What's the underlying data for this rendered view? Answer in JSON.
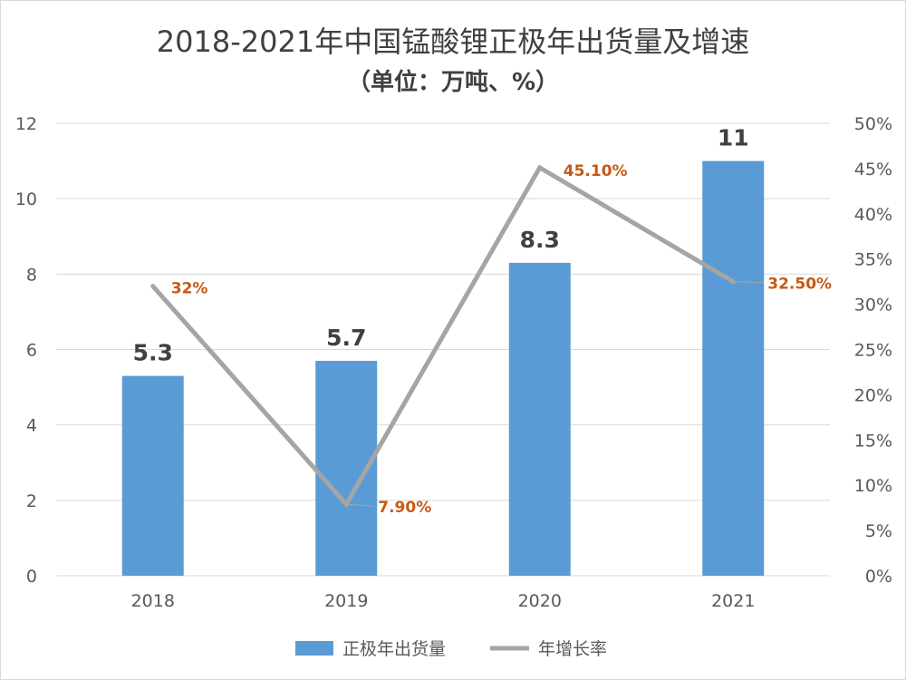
{
  "chart_data": {
    "type": "bar",
    "title": "2018-2021年中国锰酸锂正极年出货量及增速",
    "subtitle": "（单位：万吨、%）",
    "categories": [
      "2018",
      "2019",
      "2020",
      "2021"
    ],
    "series": [
      {
        "name": "正极年出货量",
        "type": "bar",
        "axis": "left",
        "color": "#5b9bd5",
        "values": [
          5.3,
          5.7,
          8.3,
          11
        ],
        "labels": [
          "5.3",
          "5.7",
          "8.3",
          "11"
        ]
      },
      {
        "name": "年增长率",
        "type": "line",
        "axis": "right",
        "color": "#a5a5a5",
        "values": [
          32,
          7.9,
          45.1,
          32.5
        ],
        "labels": [
          "32%",
          "7.90%",
          "45.10%",
          "32.50%"
        ],
        "label_color": "#c55a11"
      }
    ],
    "y_left": {
      "min": 0,
      "max": 12,
      "ticks": [
        "0",
        "2",
        "4",
        "6",
        "8",
        "10",
        "12"
      ]
    },
    "y_right": {
      "min": 0,
      "max": 50,
      "ticks": [
        "0%",
        "5%",
        "10%",
        "15%",
        "20%",
        "25%",
        "30%",
        "35%",
        "40%",
        "45%",
        "50%"
      ]
    },
    "grid": true,
    "legend": {
      "position": "bottom"
    }
  }
}
